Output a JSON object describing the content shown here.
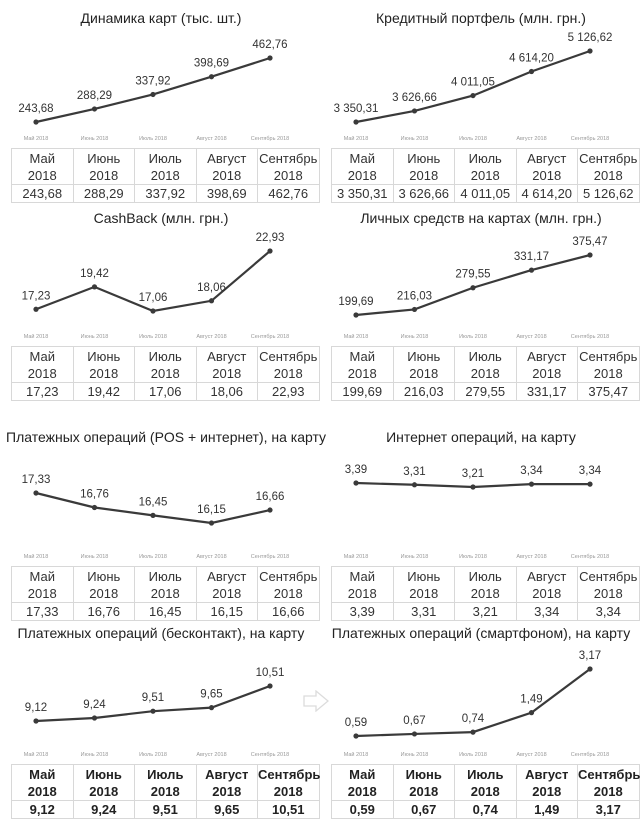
{
  "months_short": [
    "Май 2018",
    "Июнь 2018",
    "Июль 2018",
    "Август 2018",
    "Сентябрь 2018"
  ],
  "months_table": [
    {
      "m": "Май",
      "y": "2018"
    },
    {
      "m": "Июнь",
      "y": "2018"
    },
    {
      "m": "Июль",
      "y": "2018"
    },
    {
      "m": "Август",
      "y": "2018"
    },
    {
      "m": "Сентябрь",
      "y": "2018"
    }
  ],
  "colors": {
    "line": "#3a3a3a",
    "grid_border": "#d8d8d8",
    "tick_text": "#999999",
    "arrow": "#dddddd"
  },
  "arrow_icon": "right-arrow-outline",
  "chart_data": [
    {
      "type": "line",
      "title": "Динамика карт (тыс. шт.)",
      "categories": [
        "Май 2018",
        "Июнь 2018",
        "Июль 2018",
        "Август 2018",
        "Сентябрь 2018"
      ],
      "values": [
        243.68,
        288.29,
        337.92,
        398.69,
        462.76
      ],
      "labels": [
        "243,68",
        "288,29",
        "337,92",
        "398,69",
        "462,76"
      ],
      "xlabel": "",
      "ylabel": "",
      "grid": false,
      "legend": "none"
    },
    {
      "type": "line",
      "title": "Кредитный портфель (млн. грн.)",
      "categories": [
        "Май 2018",
        "Июнь 2018",
        "Июль 2018",
        "Август 2018",
        "Сентябрь 2018"
      ],
      "values": [
        3350.31,
        3626.66,
        4011.05,
        4614.2,
        5126.62
      ],
      "labels": [
        "3 350,31",
        "3 626,66",
        "4 011,05",
        "4 614,20",
        "5 126,62"
      ],
      "xlabel": "",
      "ylabel": "",
      "grid": false,
      "legend": "none"
    },
    {
      "type": "line",
      "title": "CashBack (млн. грн.)",
      "categories": [
        "Май 2018",
        "Июнь 2018",
        "Июль 2018",
        "Август 2018",
        "Сентябрь 2018"
      ],
      "values": [
        17.23,
        19.42,
        17.06,
        18.06,
        22.93
      ],
      "labels": [
        "17,23",
        "19,42",
        "17,06",
        "18,06",
        "22,93"
      ],
      "xlabel": "",
      "ylabel": "",
      "grid": false,
      "legend": "none"
    },
    {
      "type": "line",
      "title": "Личных средств на картах (млн. грн.)",
      "categories": [
        "Май 2018",
        "Июнь 2018",
        "Июль 2018",
        "Август 2018",
        "Сентябрь 2018"
      ],
      "values": [
        199.69,
        216.03,
        279.55,
        331.17,
        375.47
      ],
      "labels": [
        "199,69",
        "216,03",
        "279,55",
        "331,17",
        "375,47"
      ],
      "xlabel": "",
      "ylabel": "",
      "grid": false,
      "legend": "none"
    },
    {
      "type": "line",
      "title": "Платежных операций (POS + интернет), на карту",
      "categories": [
        "Май 2018",
        "Июнь 2018",
        "Июль 2018",
        "Август 2018",
        "Сентябрь 2018"
      ],
      "values": [
        17.33,
        16.76,
        16.45,
        16.15,
        16.66
      ],
      "labels": [
        "17,33",
        "16,76",
        "16,45",
        "16,15",
        "16,66"
      ],
      "xlabel": "",
      "ylabel": "",
      "grid": false,
      "legend": "none"
    },
    {
      "type": "line",
      "title": "Интернет операций, на карту",
      "categories": [
        "Май 2018",
        "Июнь 2018",
        "Июль 2018",
        "Август 2018",
        "Сентябрь 2018"
      ],
      "values": [
        3.39,
        3.31,
        3.21,
        3.34,
        3.34
      ],
      "labels": [
        "3,39",
        "3,31",
        "3,21",
        "3,34",
        "3,34"
      ],
      "xlabel": "",
      "ylabel": "",
      "grid": false,
      "legend": "none"
    },
    {
      "type": "line",
      "title": "Платежных операций (бесконтакт), на карту",
      "categories": [
        "Май 2018",
        "Июнь 2018",
        "Июль 2018",
        "Август 2018",
        "Сентябрь 2018"
      ],
      "values": [
        9.12,
        9.24,
        9.51,
        9.65,
        10.51
      ],
      "labels": [
        "9,12",
        "9,24",
        "9,51",
        "9,65",
        "10,51"
      ],
      "xlabel": "",
      "ylabel": "",
      "grid": false,
      "legend": "none"
    },
    {
      "type": "line",
      "title": "Платежных операций (смартфоном), на карту",
      "categories": [
        "Май 2018",
        "Июнь 2018",
        "Июль 2018",
        "Август 2018",
        "Сентябрь 2018"
      ],
      "values": [
        0.59,
        0.67,
        0.74,
        1.49,
        3.17
      ],
      "labels": [
        "0,59",
        "0,67",
        "0,74",
        "1,49",
        "3,17"
      ],
      "xlabel": "",
      "ylabel": "",
      "grid": false,
      "legend": "none"
    }
  ]
}
